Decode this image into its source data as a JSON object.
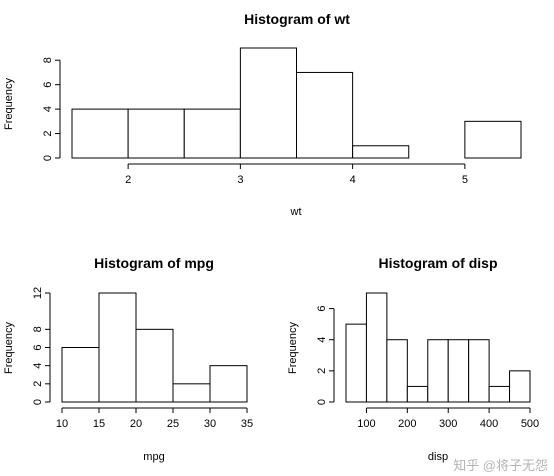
{
  "chart_data": [
    {
      "type": "bar",
      "title": "Histogram of wt",
      "xlabel": "wt",
      "ylabel": "Frequency",
      "bins": [
        [
          1.5,
          2.0
        ],
        [
          2.0,
          2.5
        ],
        [
          2.5,
          3.0
        ],
        [
          3.0,
          3.5
        ],
        [
          3.5,
          4.0
        ],
        [
          4.0,
          4.5
        ],
        [
          4.5,
          5.0
        ],
        [
          5.0,
          5.5
        ]
      ],
      "values": [
        4,
        4,
        4,
        9,
        7,
        1,
        0,
        3
      ],
      "xticks": [
        2,
        3,
        4,
        5
      ],
      "yticks": [
        0,
        2,
        4,
        6,
        8
      ],
      "xlim": [
        1.5,
        5.5
      ],
      "ylim": [
        0,
        9
      ]
    },
    {
      "type": "bar",
      "title": "Histogram of mpg",
      "xlabel": "mpg",
      "ylabel": "Frequency",
      "bins": [
        [
          10,
          15
        ],
        [
          15,
          20
        ],
        [
          20,
          25
        ],
        [
          25,
          30
        ],
        [
          30,
          35
        ]
      ],
      "values": [
        6,
        12,
        8,
        2,
        4
      ],
      "xticks": [
        10,
        15,
        20,
        25,
        30,
        35
      ],
      "yticks": [
        0,
        2,
        4,
        6,
        8,
        12
      ],
      "xlim": [
        10,
        35
      ],
      "ylim": [
        0,
        12
      ]
    },
    {
      "type": "bar",
      "title": "Histogram of disp",
      "xlabel": "disp",
      "ylabel": "Frequency",
      "bins": [
        [
          50,
          100
        ],
        [
          100,
          150
        ],
        [
          150,
          200
        ],
        [
          200,
          250
        ],
        [
          250,
          300
        ],
        [
          300,
          350
        ],
        [
          350,
          400
        ],
        [
          400,
          450
        ],
        [
          450,
          500
        ]
      ],
      "values": [
        5,
        7,
        4,
        1,
        4,
        4,
        4,
        1,
        2
      ],
      "xticks": [
        100,
        200,
        300,
        400,
        500
      ],
      "yticks": [
        0,
        2,
        4,
        6
      ],
      "xlim": [
        50,
        500
      ],
      "ylim": [
        0,
        7
      ]
    }
  ],
  "watermark": "知乎 @将子无怨"
}
